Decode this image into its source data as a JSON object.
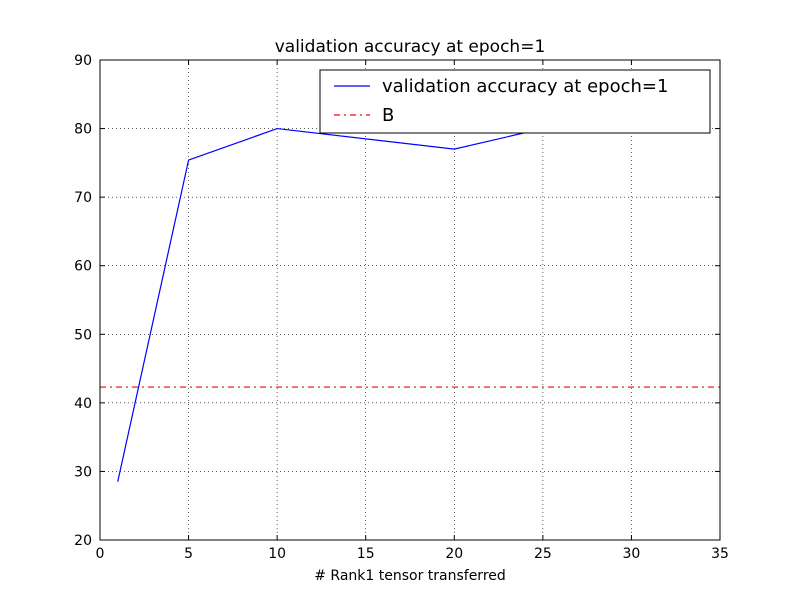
{
  "chart_data": {
    "type": "line",
    "title": "validation accuracy at epoch=1",
    "xlabel": "# Rank1 tensor transferred",
    "ylabel": "",
    "xlim": [
      0,
      35
    ],
    "ylim": [
      20,
      90
    ],
    "xticks": [
      0,
      5,
      10,
      15,
      20,
      25,
      30,
      35
    ],
    "yticks": [
      20,
      30,
      40,
      50,
      60,
      70,
      80,
      90
    ],
    "grid": true,
    "legend_placement": "top-right",
    "series": [
      {
        "name": "validation accuracy at epoch=1",
        "color": "#0000ff",
        "style": "solid",
        "x": [
          1,
          5,
          10,
          20,
          25,
          30
        ],
        "y": [
          28.5,
          75.4,
          80.0,
          77.0,
          80.0,
          80.0
        ]
      },
      {
        "name": "B",
        "color": "#ff0000",
        "style": "dashdot",
        "x": [
          0,
          35
        ],
        "y": [
          42.3,
          42.3
        ]
      }
    ]
  }
}
